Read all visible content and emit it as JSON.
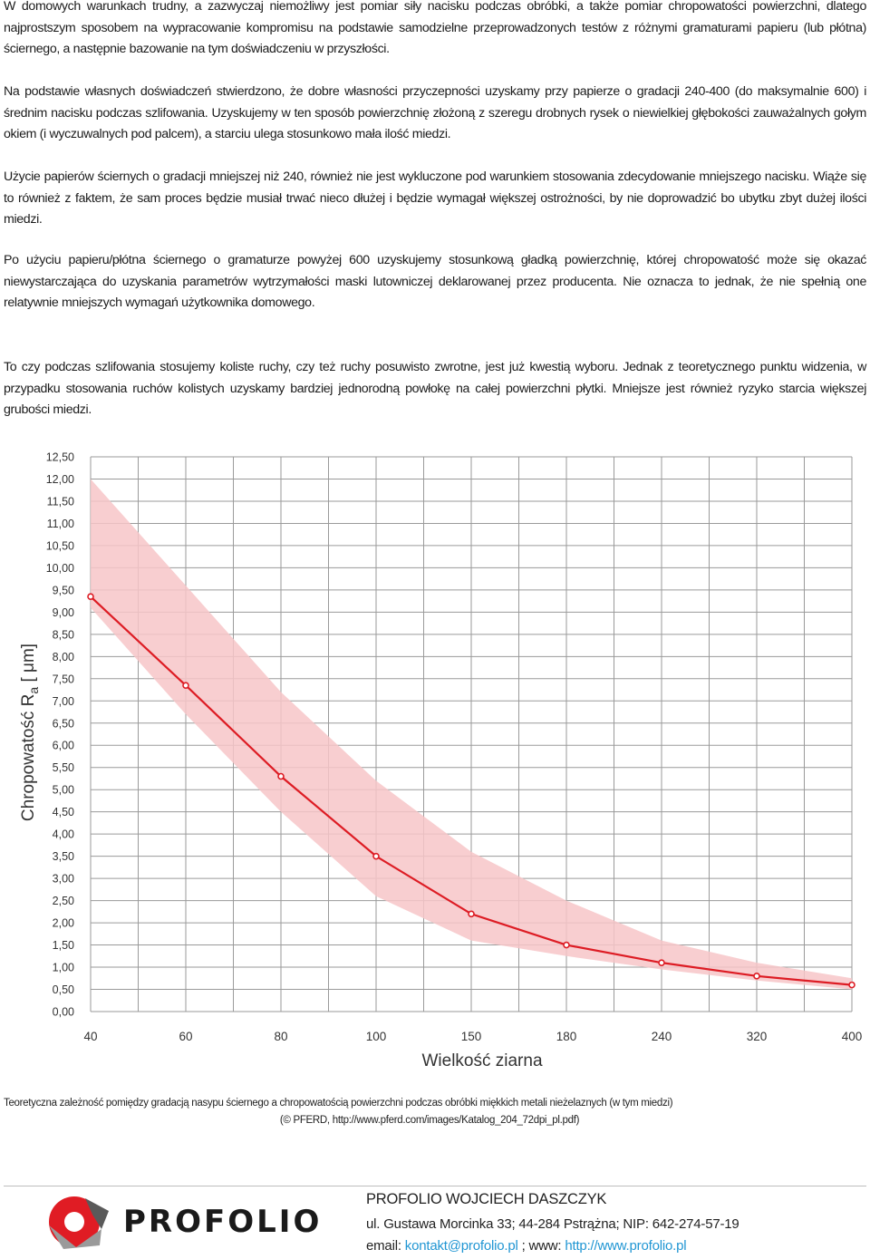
{
  "paragraphs": [
    "W domowych warunkach trudny, a zazwyczaj niemożliwy jest pomiar siły nacisku podczas obróbki, a także pomiar chropowatości powierzchni, dlatego najprostszym sposobem na wypracowanie kompromisu na podstawie samodzielne przeprowadzonych testów z różnymi gramaturami papieru (lub płótna) ściernego, a następnie bazowanie na tym doświadczeniu w przyszłości.",
    "Na podstawie własnych doświadczeń stwierdzono, że dobre własności przyczepności uzyskamy przy papierze o gradacji 240-400 (do maksymalnie 600) i średnim nacisku podczas szlifowania. Uzyskujemy w ten sposób powierzchnię złożoną z szeregu drobnych rysek o niewielkiej głębokości zauważalnych gołym okiem (i wyczuwalnych pod palcem), a starciu ulega stosunkowo mała ilość miedzi.",
    "Użycie papierów ściernych o gradacji mniejszej niż 240, również nie jest wykluczone pod warunkiem stosowania zdecydowanie mniejszego nacisku. Wiąże się to również z faktem, że sam proces będzie musiał trwać nieco dłużej i będzie wymagał większej ostrożności, by nie doprowadzić bo ubytku zbyt dużej ilości miedzi.",
    "Po użyciu papieru/płótna ściernego o gramaturze powyżej 600 uzyskujemy stosunkową gładką powierzchnię, której chropowatość może się okazać niewystarczająca do uzyskania parametrów wytrzymałości maski lutowniczej deklarowanej przez producenta. Nie oznacza to jednak, że nie spełnią one relatywnie mniejszych wymagań użytkownika domowego.",
    "To czy podczas szlifowania stosujemy koliste ruchy, czy też ruchy posuwisto zwrotne, jest już kwestią wyboru. Jednak z teoretycznego punktu widzenia, w przypadku stosowania ruchów kolistych uzyskamy bardziej jednorodną powłokę na całej powierzchni płytki. Mniejsze jest również ryzyko starcia większej grubości miedzi."
  ],
  "chart_data": {
    "type": "line",
    "title": "",
    "xlabel": "Wielkość ziarna",
    "ylabel_prefix": "Chropowatość R",
    "ylabel_sub": "a",
    "ylabel_suffix": " [ μm]",
    "categories": [
      "40",
      "60",
      "80",
      "100",
      "150",
      "180",
      "240",
      "320",
      "400"
    ],
    "values": [
      9.35,
      7.35,
      5.3,
      3.5,
      2.2,
      1.5,
      1.1,
      0.8,
      0.6
    ],
    "band_upper": [
      12.0,
      9.6,
      7.2,
      5.2,
      3.6,
      2.5,
      1.6,
      1.1,
      0.75
    ],
    "band_lower": [
      9.1,
      6.7,
      4.5,
      2.6,
      1.6,
      1.25,
      0.95,
      0.7,
      0.5
    ],
    "ylim": [
      0,
      12.5
    ],
    "y_ticks": [
      "0,00",
      "0,50",
      "1,00",
      "1,50",
      "2,00",
      "2,50",
      "3,00",
      "3,50",
      "4,00",
      "4,50",
      "5,00",
      "5,50",
      "6,00",
      "6,50",
      "7,00",
      "7,50",
      "8,00",
      "8,50",
      "9,00",
      "9,50",
      "10,00",
      "10,50",
      "11,00",
      "11,50",
      "12,00",
      "12,50"
    ],
    "grid": true,
    "colors": {
      "line": "#dd1c24",
      "band": "#f7c6c8",
      "grid": "#9a9a9a"
    }
  },
  "caption": {
    "line1": "Teoretyczna zależność pomiędzy gradacją nasypu ściernego a chropowatością  powierzchni podczas obróbki miękkich metali nieżelaznych  (w tym miedzi)",
    "line2": "(© PFERD, http://www.pferd.com/images/Katalog_204_72dpi_pl.pdf)"
  },
  "footer": {
    "logo_text": "PROFOLIO",
    "company_name": "PROFOLIO WOJCIECH DASZCZYK",
    "address": "ul. Gustawa Morcinka 33; 44-284 Pstrążna; NIP: 642-274-57-19",
    "email_label": "email: ",
    "email": "kontakt@profolio.pl",
    "www_label": " ; www: ",
    "www": "http://www.profolio.pl"
  }
}
